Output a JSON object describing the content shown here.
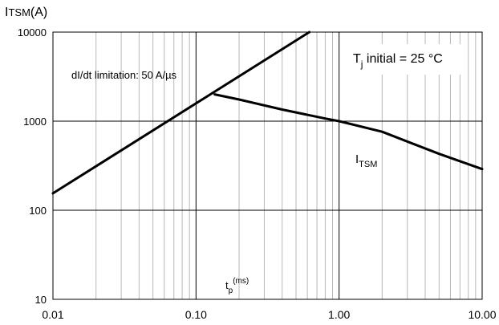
{
  "chart_data": {
    "type": "line",
    "scale": {
      "x": "log",
      "y": "log"
    },
    "xlim": [
      0.01,
      10.0
    ],
    "ylim": [
      10,
      10000
    ],
    "grid": true,
    "xticks": [
      "0.01",
      "0.10",
      "1.00",
      "10.00"
    ],
    "yticks": [
      "10",
      "100",
      "1000",
      "10000"
    ],
    "ylabel": {
      "main": "I",
      "sub": "TSM",
      "unit": "(A)"
    },
    "xlabel": {
      "main": "t",
      "sub": "p",
      "sup": "(ms)"
    },
    "annotations": {
      "didt": "dI/dt limitation: 50 A/µs",
      "tj": {
        "main": "T",
        "sub": "j",
        "rest": " initial = 25 °C"
      },
      "itsm": {
        "main": "I",
        "sub": "TSM"
      }
    },
    "series": [
      {
        "x": [
          0.01,
          0.62
        ],
        "y": [
          155,
          10000
        ]
      },
      {
        "x": [
          0.135,
          0.2,
          0.4,
          0.8,
          1.0,
          2.0,
          5.0,
          10.0
        ],
        "y": [
          2000,
          1750,
          1350,
          1070,
          1000,
          760,
          430,
          290
        ]
      }
    ],
    "colors": {
      "line": "#000000",
      "grid_major": "#000000",
      "grid_minor": "#b8b8b8"
    }
  }
}
